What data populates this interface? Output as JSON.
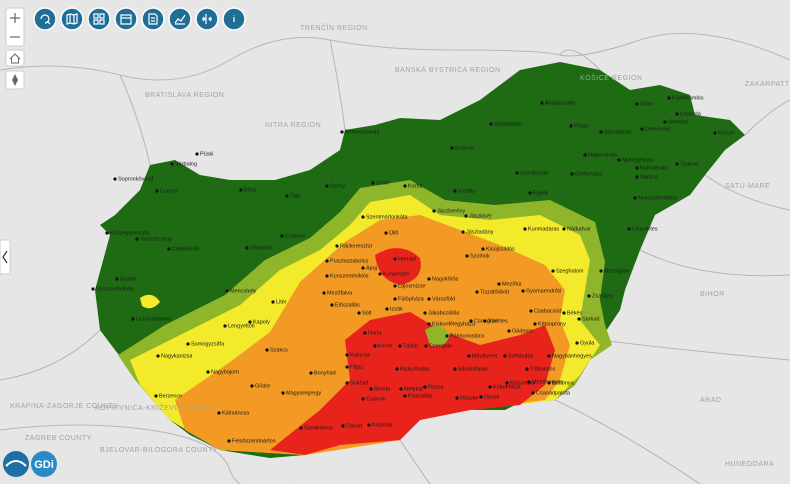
{
  "regions": [
    "TRENČÍN REGION",
    "BANSKÁ BYSTRICA REGION",
    "KOŠICE REGION",
    "ZAKARPATTIA REGION",
    "BRATISLAVA REGION",
    "NITRA REGION",
    "SATU-MARE",
    "BIHOR",
    "ARAD",
    "HUNEDOARA",
    "KRAPINA-ZAGORJE COUNTY",
    "ZAGREB COUNTY",
    "KOPRIVNICA-KRIŽEVCI COUNTY",
    "BJELOVAR-BILOGORA COUNTY"
  ],
  "places": [
    "Füzérkomlós",
    "Gönc",
    "Abaújszántó",
    "Csaroda",
    "Gemzse",
    "Kölcse",
    "Salgótarján",
    "Prügy",
    "Sárospatak",
    "Demecser",
    "Bernecebaráti",
    "Bodony",
    "Hajdúnánás",
    "Nyíregyháza",
    "Nyírvasvári",
    "Tyukod",
    "Püski",
    "Várbalog",
    "Szőny",
    "Szob",
    "Kartal",
    "Vizslás",
    "Szentistván",
    "Görbeháza",
    "Egyek",
    "Sáránd",
    "Nyírmártonfalva",
    "Sopronkövesd",
    "Csorna",
    "Bőny",
    "Tata",
    "Szentmártonkáta",
    "Jászberény",
    "Jászkisér",
    "Kunmadaras",
    "Nádudvar",
    "Létavértes",
    "Kőszegdoroszló",
    "Vasszécseny",
    "Celldömölk",
    "Városlőd",
    "Csákvár",
    "Ráckeresztúr",
    "Üllő",
    "Jászladány",
    "Kisújszállás",
    "Pusztaszabolcs",
    "Hernád",
    "Szolnok",
    "Szeghalom",
    "Mezőgyán",
    "Oszkó",
    "Vasszentmihály",
    "Mencshely",
    "Litér",
    "Mezőfalva",
    "Apaj",
    "Kunszentmiklós",
    "Kunpeszér",
    "Lajosmizse",
    "Nagykőrös",
    "Mezőtúr",
    "Tiszaföldvár",
    "Gyomaendrőd",
    "Zsadány",
    "Lickóvadamos",
    "Lengyeltóti",
    "Kapoly",
    "Előszállás",
    "Solt",
    "Fülöpháza",
    "Izsák",
    "Városföld",
    "Jakabszállás",
    "Kiskunfélegyháza",
    "Csongrád",
    "Szentes",
    "Csabacsüd",
    "Békés",
    "Sarkad",
    "Kétsoprony",
    "Gádoros",
    "Pálmonostora",
    "Csengele",
    "Harta",
    "Kalocsa",
    "Kecel",
    "Tázlár",
    "Mindszent",
    "Székkutas",
    "Gyula",
    "Nagybánhegyes",
    "Nagykanizsa",
    "Somogyzsitfa",
    "Szakcs",
    "Nagybajom",
    "Berzence",
    "Gödre",
    "Magyaregregy",
    "Bonyhád",
    "Fájsz",
    "Sükösd",
    "Borota",
    "Csávoly",
    "Kiskunhalas",
    "Sándorfalva",
    "Tótkomlós",
    "Mélykút",
    "Kisszállás",
    "Ruzsa",
    "Röszke",
    "Deszk",
    "Kübekháza",
    "Kiszombor",
    "Mezőhegyes",
    "Battonya",
    "Csanádpalota",
    "Kálmáncsa",
    "Felsőszentmárton",
    "Szederkény",
    "Dávod",
    "Katymár"
  ],
  "branding": {
    "logo_text": "GDi"
  }
}
